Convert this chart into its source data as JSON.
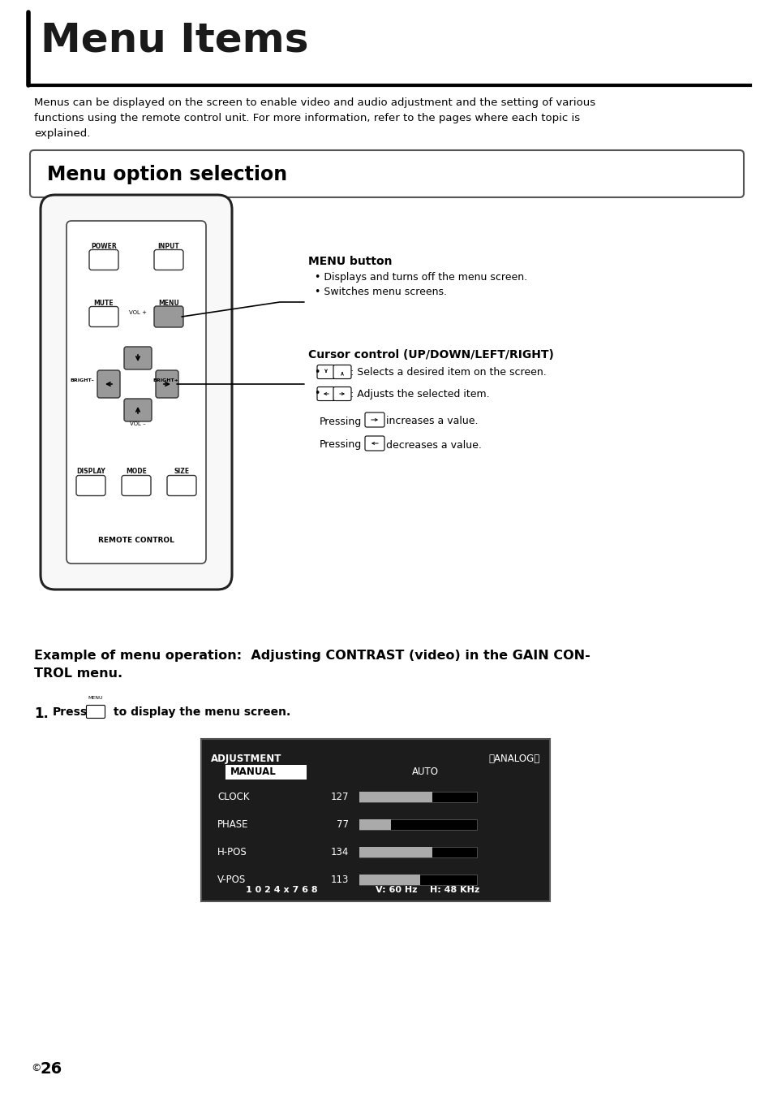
{
  "page_title": "Menu Items",
  "page_number": "26",
  "intro_text": "Menus can be displayed on the screen to enable video and audio adjustment and the setting of various\nfunctions using the remote control unit. For more information, refer to the pages where each topic is\nexplained.",
  "section_title": "Menu option selection",
  "menu_button_label": "MENU button",
  "menu_bullet1": "Displays and turns off the menu screen.",
  "menu_bullet2": "Switches menu screens.",
  "cursor_label": "Cursor control (UP/DOWN/LEFT/RIGHT)",
  "cursor_bullet1": ": Selects a desired item on the screen.",
  "cursor_bullet2": ": Adjusts the selected item.",
  "pressing_increase": "increases a value.",
  "pressing_decrease": "decreases a value.",
  "example_title_line1": "Example of menu operation:  Adjusting CONTRAST (video) in the GAIN CON-",
  "example_title_line2": "TROL menu.",
  "step1_prefix": "1.",
  "step1_press": "Press",
  "step1_suffix": "to display the menu screen.",
  "screen_title_left": "ADJUSTMENT",
  "screen_title_right": "〈ANALOG〉",
  "screen_row1_label": "MANUAL",
  "screen_row1_right": "AUTO",
  "screen_rows": [
    {
      "label": "CLOCK",
      "value": "127",
      "fill": 0.62
    },
    {
      "label": "PHASE",
      "value": "77",
      "fill": 0.27
    },
    {
      "label": "H-POS",
      "value": "134",
      "fill": 0.62
    },
    {
      "label": "V-POS",
      "value": "113",
      "fill": 0.52
    }
  ],
  "screen_bottom_left": "1 0 2 4 x 7 6 8",
  "screen_bottom_right": "V: 60 Hz    H: 48 KHz",
  "bg_color": "#ffffff",
  "text_color": "#000000",
  "screen_bg": "#1c1c1c",
  "bar_fill_color": "#aaaaaa",
  "bar_bg_color": "#000000"
}
